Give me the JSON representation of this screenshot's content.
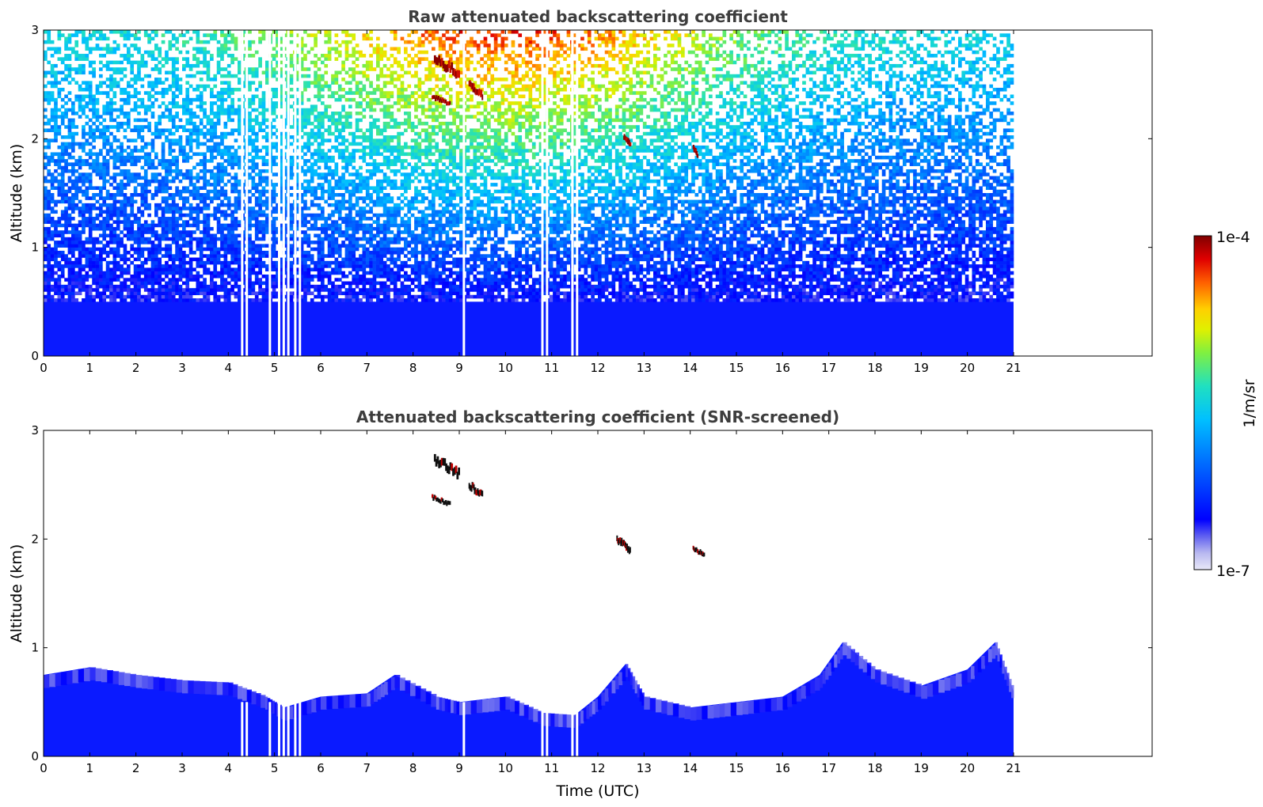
{
  "chart_data": [
    {
      "type": "heatmap",
      "title": "Raw attenuated backscattering coefficient",
      "xlabel": "",
      "ylabel": "Altitude (km)",
      "xlim": [
        0,
        24
      ],
      "ylim": [
        0,
        3
      ],
      "x_ticks": [
        "0",
        "1",
        "2",
        "3",
        "4",
        "5",
        "6",
        "7",
        "8",
        "9",
        "10",
        "11",
        "12",
        "13",
        "14",
        "15",
        "16",
        "17",
        "18",
        "19",
        "20",
        "21"
      ],
      "y_ticks": [
        "0",
        "1",
        "2",
        "3"
      ],
      "data_end_hour": 21,
      "gaps_hours": [
        4.3,
        4.4,
        4.9,
        5.1,
        5.2,
        5.3,
        5.45,
        5.55,
        9.1,
        10.8,
        10.9,
        11.45,
        11.55
      ],
      "features": [
        {
          "kind": "cloud",
          "x": [
            8.45,
            9.0
          ],
          "y": [
            2.6,
            2.8
          ]
        },
        {
          "kind": "cloud",
          "x": [
            8.4,
            8.8
          ],
          "y": [
            2.32,
            2.42
          ]
        },
        {
          "kind": "cloud",
          "x": [
            9.2,
            9.5
          ],
          "y": [
            2.4,
            2.55
          ]
        },
        {
          "kind": "cloud",
          "x": [
            12.55,
            12.7
          ],
          "y": [
            1.95,
            2.05
          ]
        },
        {
          "kind": "cloud",
          "x": [
            14.05,
            14.15
          ],
          "y": [
            1.85,
            1.95
          ]
        }
      ]
    },
    {
      "type": "heatmap",
      "title": "Attenuated backscattering coefficient (SNR-screened)",
      "xlabel": "Time (UTC)",
      "ylabel": "Altitude (km)",
      "xlim": [
        0,
        24
      ],
      "ylim": [
        0,
        3
      ],
      "x_ticks": [
        "0",
        "1",
        "2",
        "3",
        "4",
        "5",
        "6",
        "7",
        "8",
        "9",
        "10",
        "11",
        "12",
        "13",
        "14",
        "15",
        "16",
        "17",
        "18",
        "19",
        "20",
        "21"
      ],
      "y_ticks": [
        "0",
        "1",
        "2",
        "3"
      ],
      "data_end_hour": 21,
      "boundary_layer_top_km": [
        [
          0,
          0.75
        ],
        [
          1,
          0.82
        ],
        [
          2,
          0.75
        ],
        [
          3,
          0.7
        ],
        [
          4,
          0.68
        ],
        [
          4.8,
          0.55
        ],
        [
          5.2,
          0.45
        ],
        [
          6,
          0.55
        ],
        [
          7,
          0.58
        ],
        [
          7.6,
          0.75
        ],
        [
          8.5,
          0.55
        ],
        [
          9,
          0.5
        ],
        [
          10,
          0.55
        ],
        [
          10.8,
          0.4
        ],
        [
          11.5,
          0.38
        ],
        [
          12,
          0.55
        ],
        [
          12.6,
          0.85
        ],
        [
          13,
          0.55
        ],
        [
          14,
          0.45
        ],
        [
          15,
          0.5
        ],
        [
          16,
          0.55
        ],
        [
          16.8,
          0.75
        ],
        [
          17.3,
          1.05
        ],
        [
          18,
          0.8
        ],
        [
          19,
          0.65
        ],
        [
          20,
          0.8
        ],
        [
          20.6,
          1.05
        ],
        [
          21,
          0.6
        ]
      ],
      "features": [
        {
          "kind": "cloud",
          "x": [
            8.45,
            9.0
          ],
          "y": [
            2.6,
            2.8
          ]
        },
        {
          "kind": "cloud",
          "x": [
            8.4,
            8.8
          ],
          "y": [
            2.32,
            2.42
          ]
        },
        {
          "kind": "cloud",
          "x": [
            9.2,
            9.5
          ],
          "y": [
            2.4,
            2.55
          ]
        },
        {
          "kind": "cloud",
          "x": [
            12.4,
            12.7
          ],
          "y": [
            1.9,
            2.05
          ]
        },
        {
          "kind": "cloud",
          "x": [
            14.05,
            14.3
          ],
          "y": [
            1.85,
            1.95
          ]
        }
      ]
    }
  ],
  "colorbar": {
    "label": "1/m/sr",
    "max_label": "1e-4",
    "min_label": "1e-7",
    "scale": "log",
    "range": [
      1e-07,
      0.0001
    ],
    "colors": [
      "#e8e8f8",
      "#b8b8f0",
      "#8080f0",
      "#0000ff",
      "#0050ff",
      "#00a0ff",
      "#00e0e0",
      "#40f080",
      "#c0f000",
      "#ffe000",
      "#ff8000",
      "#ff2000",
      "#c00000",
      "#800000"
    ]
  }
}
